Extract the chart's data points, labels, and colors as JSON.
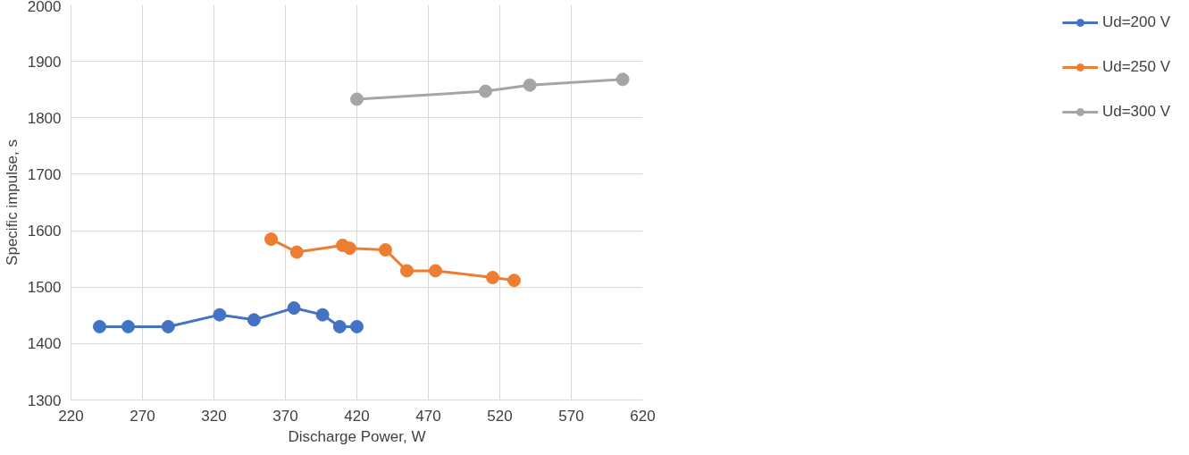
{
  "chart_data": {
    "type": "line",
    "xlabel": "Discharge Power, W",
    "ylabel": "Specific impulse, s",
    "xlim": [
      220,
      620
    ],
    "xticks": [
      220,
      270,
      320,
      370,
      420,
      470,
      520,
      570,
      620
    ],
    "ylim": [
      1300,
      2000
    ],
    "yticks": [
      1300,
      1400,
      1500,
      1600,
      1700,
      1800,
      1900,
      2000
    ],
    "grid": true,
    "legend": "right",
    "marker": "circle",
    "line_style": "solid",
    "series": [
      {
        "name": "Ud=200 V",
        "color": "#4472c4",
        "x": [
          240,
          260,
          288,
          324,
          348,
          376,
          396,
          408,
          420
        ],
        "values": [
          1430,
          1430,
          1430,
          1451,
          1442,
          1463,
          1451,
          1430,
          1430
        ]
      },
      {
        "name": "Ud=250 V",
        "color": "#ed7d31",
        "x": [
          360,
          378,
          410,
          415,
          440,
          455,
          475,
          515,
          530
        ],
        "values": [
          1585,
          1562,
          1574,
          1569,
          1566,
          1529,
          1529,
          1517,
          1512
        ]
      },
      {
        "name": "Ud=300 V",
        "color": "#a5a5a5",
        "x": [
          420,
          510,
          541,
          606
        ],
        "values": [
          1833,
          1847,
          1858,
          1868
        ]
      }
    ]
  }
}
